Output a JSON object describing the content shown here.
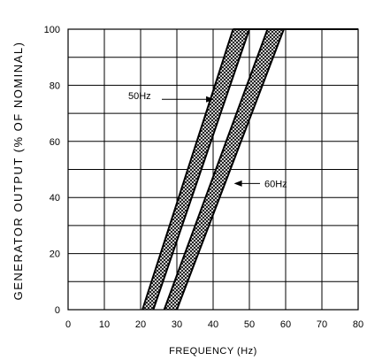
{
  "chart_data": {
    "type": "line",
    "title": "",
    "xlabel": "FREQUENCY (Hz)",
    "ylabel": "GENERATOR OUTPUT (% OF NOMINAL)",
    "xlim": [
      0,
      80
    ],
    "ylim": [
      0,
      100
    ],
    "x_ticks": [
      "0",
      "10",
      "20",
      "30",
      "40",
      "50",
      "60",
      "70",
      "80"
    ],
    "y_ticks": [
      "0",
      "20",
      "40",
      "60",
      "80",
      "100"
    ],
    "grid": true,
    "series": [
      {
        "name": "50Hz",
        "band": {
          "lower": {
            "x": [
              20.5,
              45.5,
              80
            ],
            "y": [
              0,
              100,
              100
            ]
          },
          "upper": {
            "x": [
              23.5,
              50.0,
              80
            ],
            "y": [
              0,
              100,
              100
            ]
          }
        }
      },
      {
        "name": "60Hz",
        "band": {
          "lower": {
            "x": [
              26.5,
              55.0,
              80
            ],
            "y": [
              0,
              100,
              100
            ]
          },
          "upper": {
            "x": [
              30.0,
              59.5,
              80
            ],
            "y": [
              0,
              100,
              100
            ]
          }
        }
      }
    ],
    "annotations": [
      {
        "text": "50Hz",
        "points_to": "50Hz band",
        "x": 40.5,
        "y": 75
      },
      {
        "text": "60Hz",
        "points_to": "60Hz band",
        "x": 45.5,
        "y": 45
      }
    ]
  }
}
